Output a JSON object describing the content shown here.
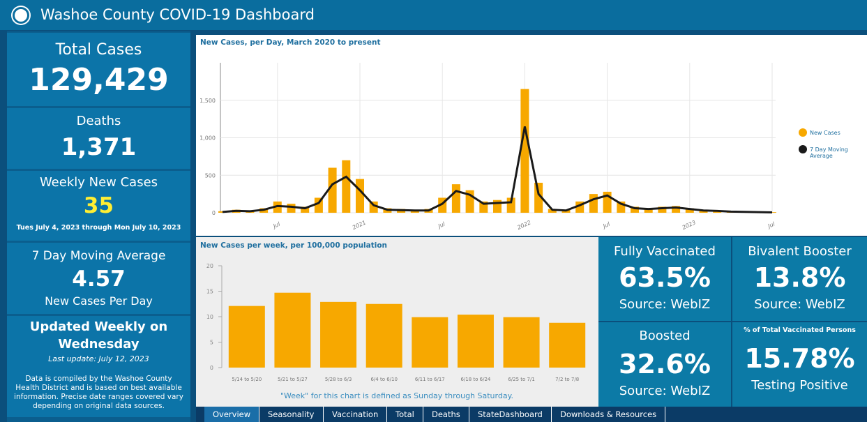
{
  "header": {
    "title": "Washoe County COVID-19 Dashboard"
  },
  "left_panel": {
    "total_cases": {
      "label": "Total Cases",
      "value": "129,429"
    },
    "deaths": {
      "label": "Deaths",
      "value": "1,371"
    },
    "weekly_new_cases": {
      "label": "Weekly New Cases",
      "value": "35",
      "period": "Tues July 4, 2023 through Mon July 10, 2023"
    },
    "moving_average": {
      "label": "7 Day Moving Average",
      "value": "4.57",
      "unit": "New Cases Per Day"
    },
    "updated": {
      "line1": "Updated Weekly on",
      "line2": "Wednesday",
      "last_update": "Last update: July 12, 2023",
      "note": "Data is compiled by the Washoe County Health District and is based on best available information.  Precise date ranges covered vary depending on original data sources."
    }
  },
  "charts": [
    {
      "type": "combo",
      "title": "New Cases, per Day, March 2020 to present",
      "x": [
        "2020-03",
        "2020-04",
        "2020-05",
        "2020-06",
        "2020-07",
        "2020-08",
        "2020-09",
        "2020-10",
        "2020-11",
        "2020-12",
        "2021-01",
        "2021-02",
        "2021-03",
        "2021-04",
        "2021-05",
        "2021-06",
        "2021-07",
        "2021-08",
        "2021-09",
        "2021-10",
        "2021-11",
        "2021-12",
        "2022-01",
        "2022-02",
        "2022-03",
        "2022-04",
        "2022-05",
        "2022-06",
        "2022-07",
        "2022-08",
        "2022-09",
        "2022-10",
        "2022-11",
        "2022-12",
        "2023-01",
        "2023-02",
        "2023-03",
        "2023-04",
        "2023-05",
        "2023-06",
        "2023-07"
      ],
      "series": [
        {
          "name": "New Cases",
          "kind": "bar",
          "color": "#f7a800",
          "values": [
            20,
            40,
            30,
            60,
            150,
            120,
            80,
            200,
            600,
            700,
            450,
            150,
            60,
            50,
            40,
            50,
            200,
            380,
            300,
            150,
            170,
            200,
            1650,
            400,
            50,
            40,
            150,
            250,
            280,
            150,
            80,
            60,
            80,
            90,
            60,
            40,
            30,
            20,
            15,
            10,
            8
          ]
        },
        {
          "name": "7 Day Moving Average",
          "kind": "line",
          "color": "#1a1a1a",
          "values": [
            10,
            25,
            20,
            40,
            90,
            80,
            60,
            130,
            380,
            480,
            300,
            100,
            40,
            35,
            30,
            30,
            120,
            290,
            240,
            120,
            130,
            140,
            1150,
            250,
            40,
            30,
            100,
            180,
            230,
            120,
            60,
            50,
            60,
            70,
            50,
            30,
            25,
            15,
            12,
            8,
            5
          ]
        }
      ],
      "xlim": [
        "2020-03",
        "2023-07"
      ],
      "xticks": [
        {
          "value": "2020-07",
          "label": "Jul"
        },
        {
          "value": "2021-01",
          "label": "2021"
        },
        {
          "value": "2021-07",
          "label": "Jul"
        },
        {
          "value": "2022-01",
          "label": "2022"
        },
        {
          "value": "2022-07",
          "label": "Jul"
        },
        {
          "value": "2023-01",
          "label": "2023"
        },
        {
          "value": "2023-07",
          "label": "Jul"
        }
      ],
      "ylim": [
        0,
        2000
      ],
      "yticks": [
        0,
        500,
        {
          "value": 1000,
          "label": "1,000"
        },
        {
          "value": 1500,
          "label": "1,500"
        }
      ],
      "grid": true,
      "legend": "right"
    },
    {
      "type": "bar",
      "title": "New Cases per week, per 100,000 population",
      "categories": [
        "5/14 to 5/20",
        "5/21 to 5/27",
        "5/28 to 6/3",
        "6/4 to 6/10",
        "6/11 to 6/17",
        "6/18 to 6/24",
        "6/25 to 7/1",
        "7/2 to 7/8"
      ],
      "values": [
        12.1,
        14.7,
        12.9,
        12.5,
        9.9,
        10.4,
        9.9,
        8.8
      ],
      "color": "#f7a800",
      "ylim": [
        0,
        20
      ],
      "yticks": [
        0,
        5,
        10,
        15,
        20
      ],
      "grid": false,
      "note": "\"Week\" for this chart is defined as Sunday through Saturday."
    }
  ],
  "tiles": [
    {
      "label": "Fully Vaccinated",
      "value": "63.5%",
      "footer": "Source: WebIZ"
    },
    {
      "label": "Bivalent Booster",
      "value": "13.8%",
      "footer": "Source: WebIZ"
    },
    {
      "label": "Boosted",
      "value": "32.6%",
      "footer": "Source: WebIZ"
    },
    {
      "label": "% of Total Vaccinated Persons",
      "value": "15.78%",
      "footer": "Testing Positive"
    }
  ],
  "tabs": [
    "Overview",
    "Seasonality",
    "Vaccination",
    "Total",
    "Deaths",
    "StateDashboard",
    "Downloads & Resources"
  ]
}
